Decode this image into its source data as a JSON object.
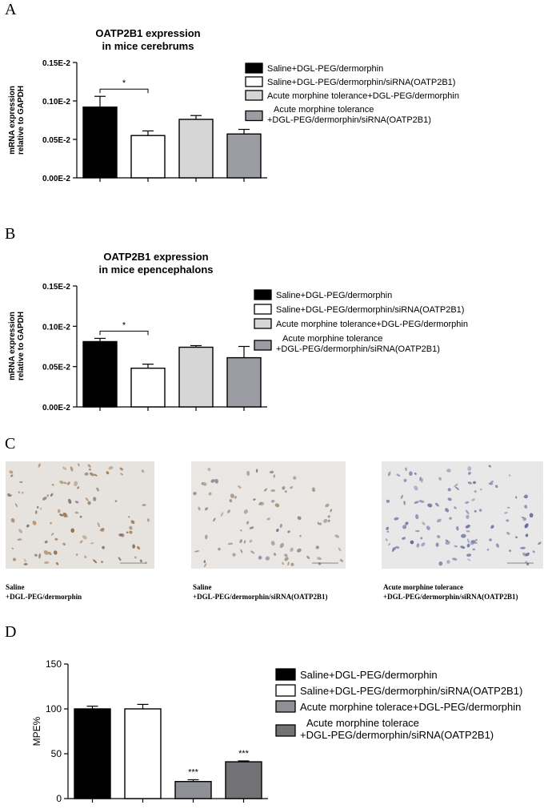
{
  "panels": {
    "A": "A",
    "B": "B",
    "C": "C",
    "D": "D"
  },
  "chart_data": [
    {
      "type": "bar",
      "panel": "A",
      "title_lines": [
        "OATP2B1 expression",
        "in mice cerebrums"
      ],
      "ylabel_lines": [
        "mRNA expression",
        "relative to GAPDH"
      ],
      "y_ticks": [
        "0.00E-2",
        "0.05E-2",
        "0.10E-2",
        "0.15E-2"
      ],
      "ylim": [
        0,
        0.15
      ],
      "categories": [
        "Saline+DGL-PEG/dermorphin",
        "Saline+DGL-PEG/dermorphin/siRNA(OATP2B1)",
        "Acute morphine tolerance+DGL-PEG/dermorphin",
        "Acute morphine tolerance +DGL-PEG/dermorphin/siRNA(OATP2B1)"
      ],
      "values": [
        0.092,
        0.055,
        0.076,
        0.057
      ],
      "errors": [
        0.014,
        0.006,
        0.005,
        0.006
      ],
      "colors": [
        "#000000",
        "#ffffff",
        "#d6d6d6",
        "#9c9ca4"
      ],
      "significance": [
        {
          "from": 0,
          "to": 1,
          "label": "*"
        }
      ],
      "legend": [
        [
          "Saline+DGL-PEG/dermorphin"
        ],
        [
          "Saline+DGL-PEG/dermorphin/siRNA(OATP2B1)"
        ],
        [
          "Acute morphine tolerance+DGL-PEG/dermorphin"
        ],
        [
          "Acute morphine tolerance",
          "+DGL-PEG/dermorphin/siRNA(OATP2B1)"
        ]
      ]
    },
    {
      "type": "bar",
      "panel": "B",
      "title_lines": [
        "OATP2B1 expression",
        "in mice epencephalons"
      ],
      "ylabel_lines": [
        "mRNA expression",
        "relative to GAPDH"
      ],
      "y_ticks": [
        "0.00E-2",
        "0.05E-2",
        "0.10E-2",
        "0.15E-2"
      ],
      "ylim": [
        0,
        0.15
      ],
      "categories": [
        "Saline+DGL-PEG/dermorphin",
        "Saline+DGL-PEG/dermorphin/siRNA(OATP2B1)",
        "Acute morphine tolerance+DGL-PEG/dermorphin",
        "Acute morphine tolerance +DGL-PEG/dermorphin/siRNA(OATP2B1)"
      ],
      "values": [
        0.081,
        0.048,
        0.074,
        0.061
      ],
      "errors": [
        0.004,
        0.005,
        0.002,
        0.014
      ],
      "colors": [
        "#000000",
        "#ffffff",
        "#d6d6d6",
        "#9c9ca4"
      ],
      "significance": [
        {
          "from": 0,
          "to": 1,
          "label": "*"
        }
      ],
      "legend": [
        [
          "Saline+DGL-PEG/dermorphin"
        ],
        [
          "Saline+DGL-PEG/dermorphin/siRNA(OATP2B1)"
        ],
        [
          "Acute morphine tolerance+DGL-PEG/dermorphin"
        ],
        [
          "Acute morphine tolerance",
          "+DGL-PEG/dermorphin/siRNA(OATP2B1)"
        ]
      ]
    },
    {
      "type": "bar",
      "panel": "D",
      "ylabel_lines": [
        "MPE%"
      ],
      "y_ticks": [
        "0",
        "50",
        "100",
        "150"
      ],
      "ylim": [
        0,
        150
      ],
      "categories": [
        "Saline+DGL-PEG/dermorphin",
        "Saline+DGL-PEG/dermorphin/siRNA(OATP2B1)",
        "Acute morphine tolerace+DGL-PEG/dermorphin",
        "Acute morphine tolerace +DGL-PEG/dermorphin/siRNA(OATP2B1)"
      ],
      "values": [
        100,
        100,
        19,
        41
      ],
      "errors": [
        3,
        5,
        2,
        1
      ],
      "colors": [
        "#000000",
        "#ffffff",
        "#8f8f96",
        "#727276"
      ],
      "bar_labels": [
        "",
        "",
        "***",
        "***"
      ],
      "legend": [
        [
          "Saline+DGL-PEG/dermorphin"
        ],
        [
          "Saline+DGL-PEG/dermorphin/siRNA(OATP2B1)"
        ],
        [
          "Acute morphine tolerace+DGL-PEG/dermorphin"
        ],
        [
          "Acute morphine tolerace",
          "+DGL-PEG/dermorphin/siRNA(OATP2B1)"
        ]
      ]
    }
  ],
  "micrographs": [
    {
      "caption_lines": [
        "Saline",
        "+DGL-PEG/dermorphin"
      ],
      "stain_density": "high"
    },
    {
      "caption_lines": [
        "Saline",
        "+DGL-PEG/dermorphin/siRNA(OATP2B1)"
      ],
      "stain_density": "medium"
    },
    {
      "caption_lines": [
        "Acute morphine tolerance",
        "+DGL-PEG/dermorphin/siRNA(OATP2B1)"
      ],
      "stain_density": "low"
    }
  ]
}
